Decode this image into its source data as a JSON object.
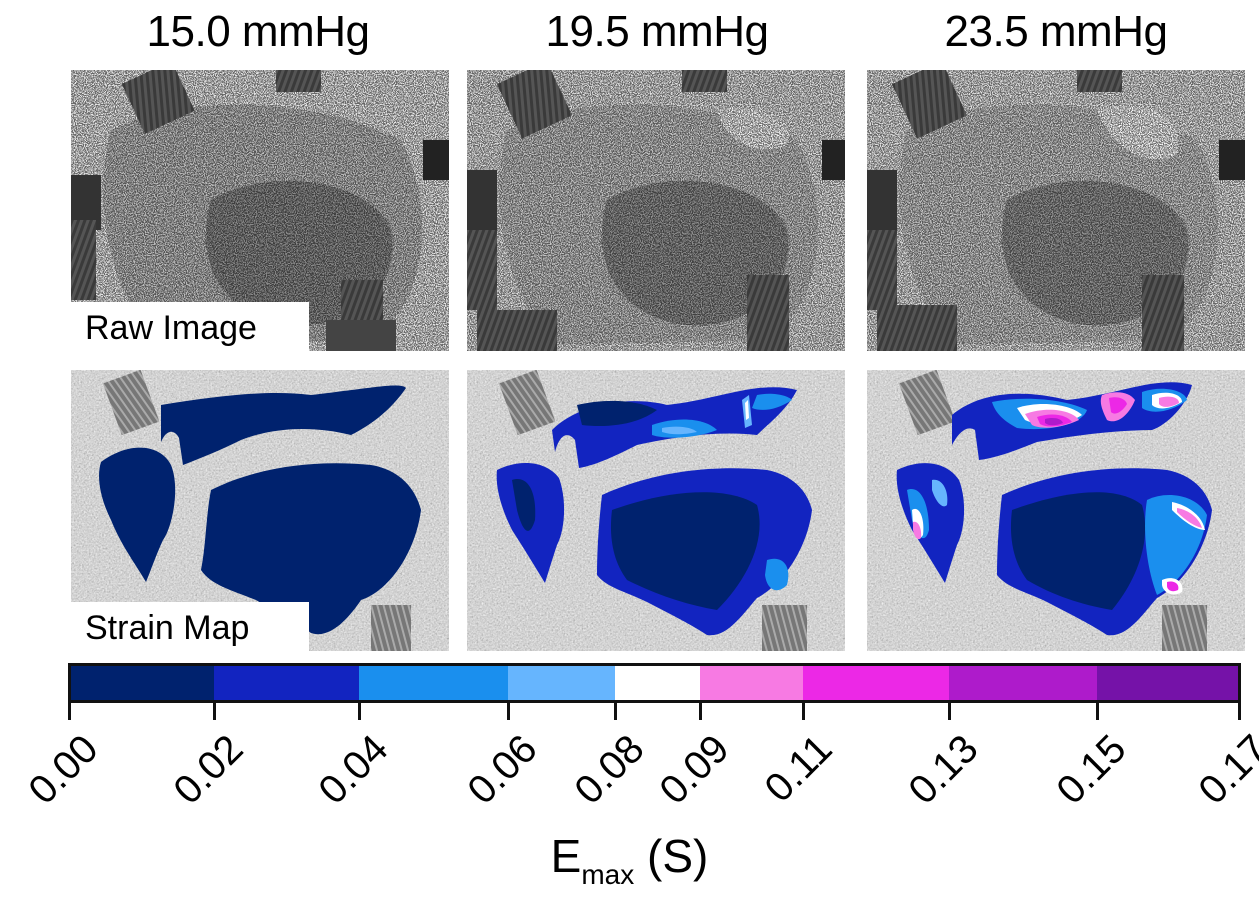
{
  "figure": {
    "columns": [
      {
        "title": "15.0 mmHg"
      },
      {
        "title": "19.5 mmHg"
      },
      {
        "title": "23.5 mmHg"
      }
    ],
    "rows": [
      {
        "label": "Raw Image"
      },
      {
        "label": "Strain Map"
      }
    ],
    "colorbar": {
      "label_main": "E",
      "label_sub": "max",
      "label_unit": "(S)",
      "ticks": [
        "0.00",
        "0.02",
        "0.04",
        "0.06",
        "0.08",
        "0.09",
        "0.11",
        "0.13",
        "0.15",
        "0.17"
      ],
      "segments": [
        {
          "from": 0.0,
          "to": 0.02,
          "color": "#00226e"
        },
        {
          "from": 0.02,
          "to": 0.04,
          "color": "#1224c0"
        },
        {
          "from": 0.04,
          "to": 0.06,
          "color": "#1a8fee"
        },
        {
          "from": 0.06,
          "to": 0.08,
          "color": "#66b5fe"
        },
        {
          "from": 0.08,
          "to": 0.09,
          "color": "#ffffff"
        },
        {
          "from": 0.09,
          "to": 0.11,
          "color": "#f77ae3"
        },
        {
          "from": 0.11,
          "to": 0.13,
          "color": "#ec28e6"
        },
        {
          "from": 0.13,
          "to": 0.15,
          "color": "#ae1bcb"
        },
        {
          "from": 0.15,
          "to": 0.17,
          "color": "#7512a8"
        }
      ]
    }
  },
  "chart_data": {
    "type": "heatmap",
    "title": "",
    "conditions": [
      "15.0 mmHg",
      "19.5 mmHg",
      "23.5 mmHg"
    ],
    "rows": [
      "Raw Image",
      "Strain Map"
    ],
    "colorbar": {
      "label": "E_max (S)",
      "ticks": [
        0.0,
        0.02,
        0.04,
        0.06,
        0.08,
        0.09,
        0.11,
        0.13,
        0.15,
        0.17
      ],
      "range": [
        0.0,
        0.17
      ],
      "bins": [
        {
          "range": [
            0.0,
            0.02
          ],
          "color": "#00226e"
        },
        {
          "range": [
            0.02,
            0.04
          ],
          "color": "#1224c0"
        },
        {
          "range": [
            0.04,
            0.06
          ],
          "color": "#1a8fee"
        },
        {
          "range": [
            0.06,
            0.08
          ],
          "color": "#66b5fe"
        },
        {
          "range": [
            0.08,
            0.09
          ],
          "color": "#ffffff"
        },
        {
          "range": [
            0.09,
            0.11
          ],
          "color": "#f77ae3"
        },
        {
          "range": [
            0.11,
            0.13
          ],
          "color": "#ec28e6"
        },
        {
          "range": [
            0.13,
            0.15
          ],
          "color": "#ae1bcb"
        },
        {
          "range": [
            0.15,
            0.17
          ],
          "color": "#7512a8"
        }
      ]
    },
    "strain_summary": [
      {
        "condition": "15.0 mmHg",
        "dominant_range": [
          0.0,
          0.02
        ],
        "max_range": [
          0.0,
          0.02
        ]
      },
      {
        "condition": "19.5 mmHg",
        "dominant_range": [
          0.0,
          0.04
        ],
        "max_range": [
          0.08,
          0.11
        ]
      },
      {
        "condition": "23.5 mmHg",
        "dominant_range": [
          0.0,
          0.06
        ],
        "max_range": [
          0.13,
          0.17
        ]
      }
    ]
  }
}
